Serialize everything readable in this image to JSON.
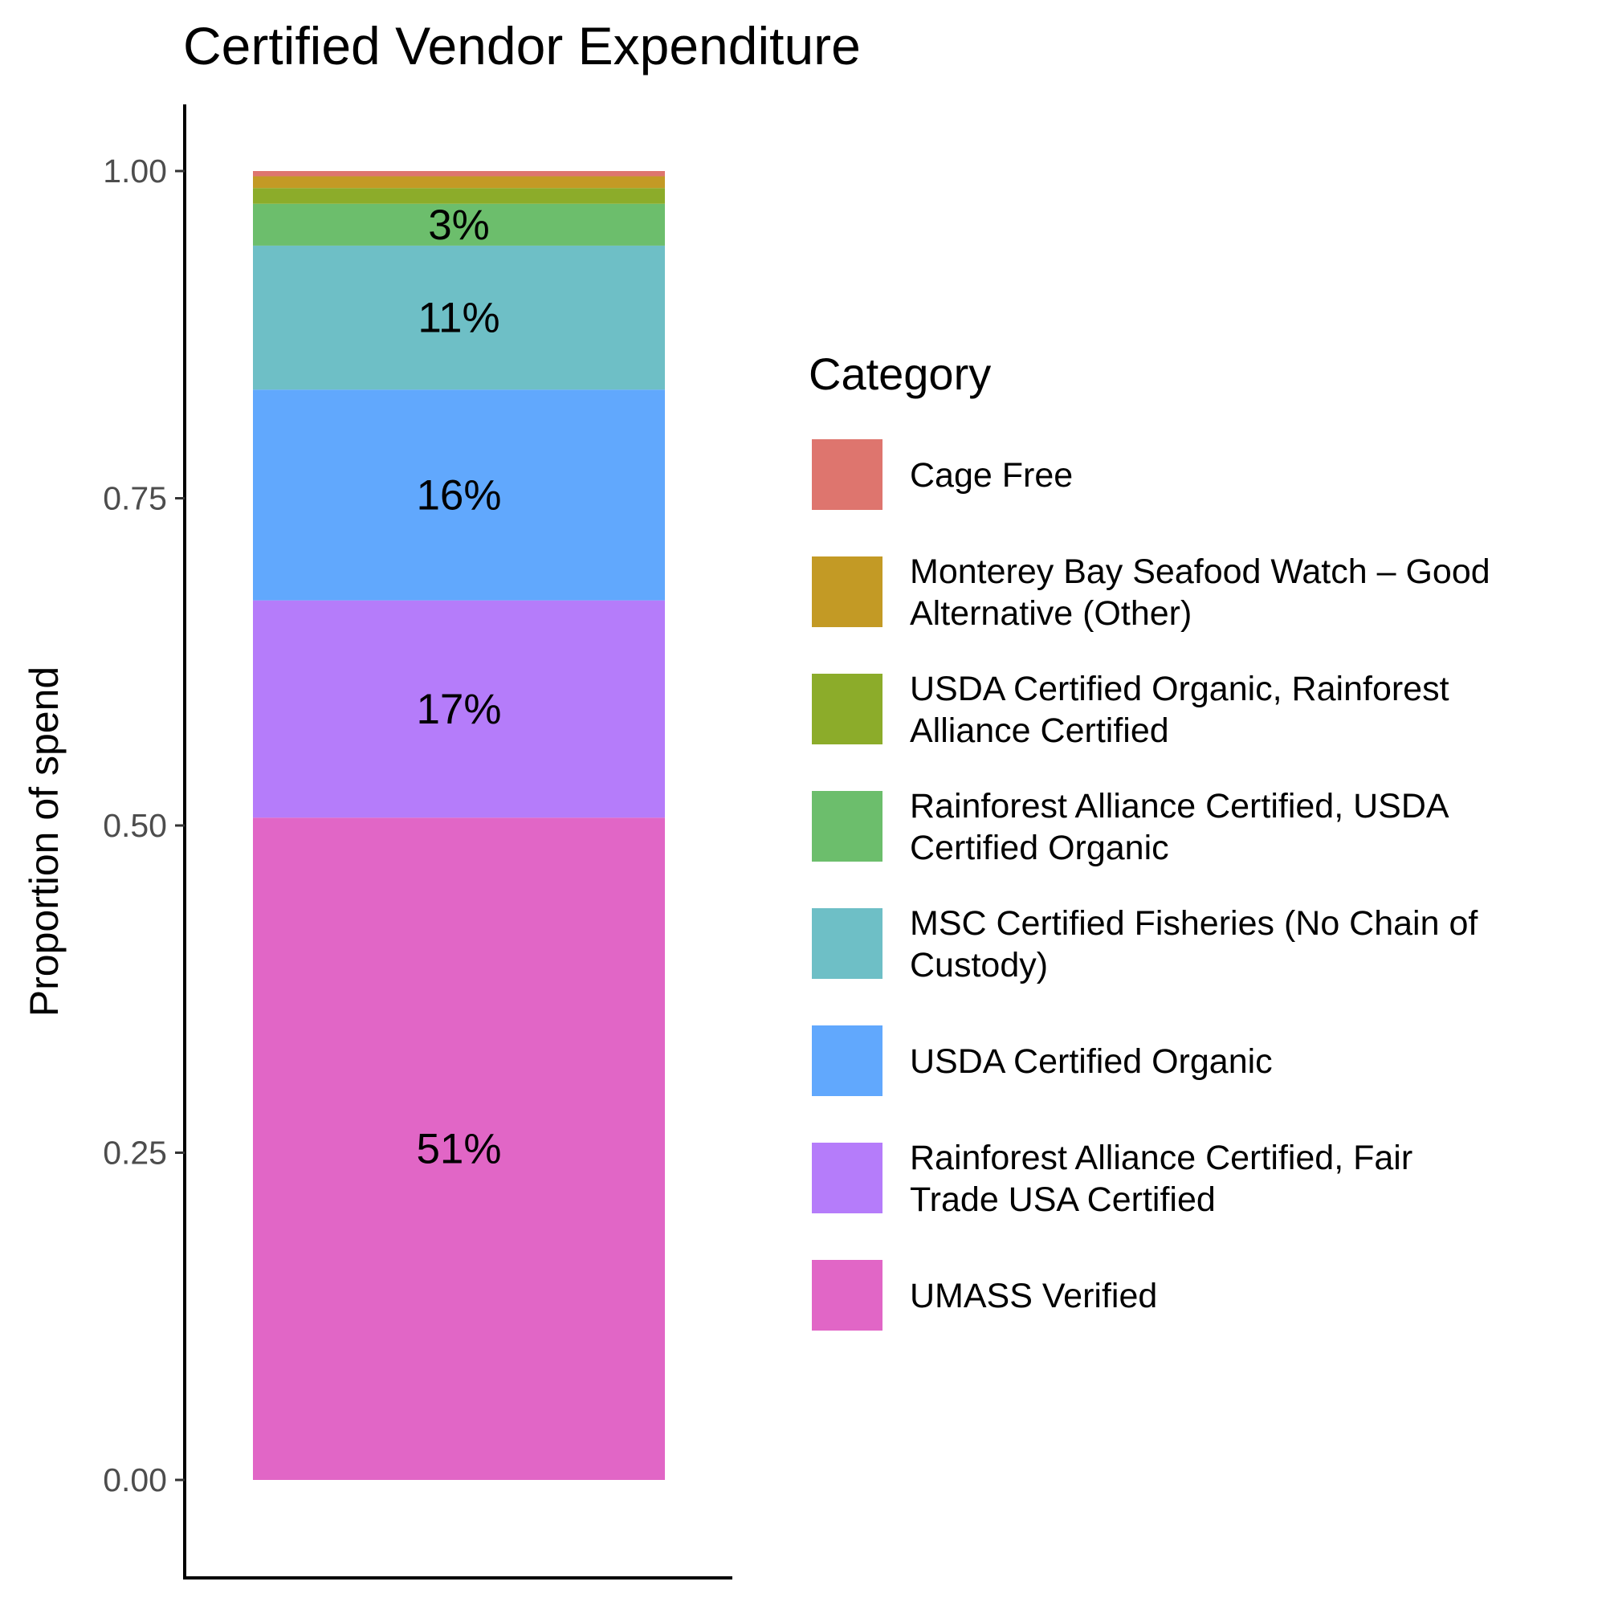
{
  "chart_data": {
    "type": "bar",
    "stacked": true,
    "title": "Certified Vendor Expenditure",
    "xlabel": "",
    "ylabel": "Proportion of spend",
    "ylim": [
      0,
      1
    ],
    "yticks": [
      "0.00",
      "0.25",
      "0.50",
      "0.75",
      "1.00"
    ],
    "grid": false,
    "legend_position": "right",
    "legend_title": "Category",
    "series": [
      {
        "name": "UMASS Verified",
        "value": 0.506,
        "label": "51%",
        "color": "#E166C6"
      },
      {
        "name": "Rainforest Alliance Certified, Fair Trade USA Certified",
        "value": 0.166,
        "label": "17%",
        "color": "#B57CFA"
      },
      {
        "name": "USDA Certified Organic",
        "value": 0.161,
        "label": "16%",
        "color": "#61A8FD"
      },
      {
        "name": "MSC Certified Fisheries (No Chain of Custody)",
        "value": 0.11,
        "label": "11%",
        "color": "#6EBFC6"
      },
      {
        "name": "Rainforest Alliance Certified, USDA Certified Organic",
        "value": 0.032,
        "label": "3%",
        "color": "#6CBE6C"
      },
      {
        "name": "USDA Certified Organic, Rainforest Alliance Certified",
        "value": 0.012,
        "label": "",
        "color": "#8CAC2A"
      },
      {
        "name": "Monterey Bay Seafood Watch – Good Alternative (Other)",
        "value": 0.009,
        "label": "",
        "color": "#C39A25"
      },
      {
        "name": "Cage Free",
        "value": 0.004,
        "label": "",
        "color": "#DE756E"
      }
    ],
    "legend_entries": [
      {
        "lines": [
          "Cage Free"
        ],
        "color": "#DE756E"
      },
      {
        "lines": [
          "Monterey Bay Seafood Watch – Good",
          "Alternative (Other)"
        ],
        "color": "#C39A25"
      },
      {
        "lines": [
          "USDA Certified Organic, Rainforest",
          "Alliance Certified"
        ],
        "color": "#8CAC2A"
      },
      {
        "lines": [
          "Rainforest Alliance Certified, USDA",
          "Certified Organic"
        ],
        "color": "#6CBE6C"
      },
      {
        "lines": [
          "MSC Certified Fisheries (No Chain of",
          "Custody)"
        ],
        "color": "#6EBFC6"
      },
      {
        "lines": [
          "USDA Certified Organic"
        ],
        "color": "#61A8FD"
      },
      {
        "lines": [
          "Rainforest Alliance Certified, Fair",
          "Trade USA Certified"
        ],
        "color": "#B57CFA"
      },
      {
        "lines": [
          "UMASS Verified"
        ],
        "color": "#E166C6"
      }
    ]
  }
}
